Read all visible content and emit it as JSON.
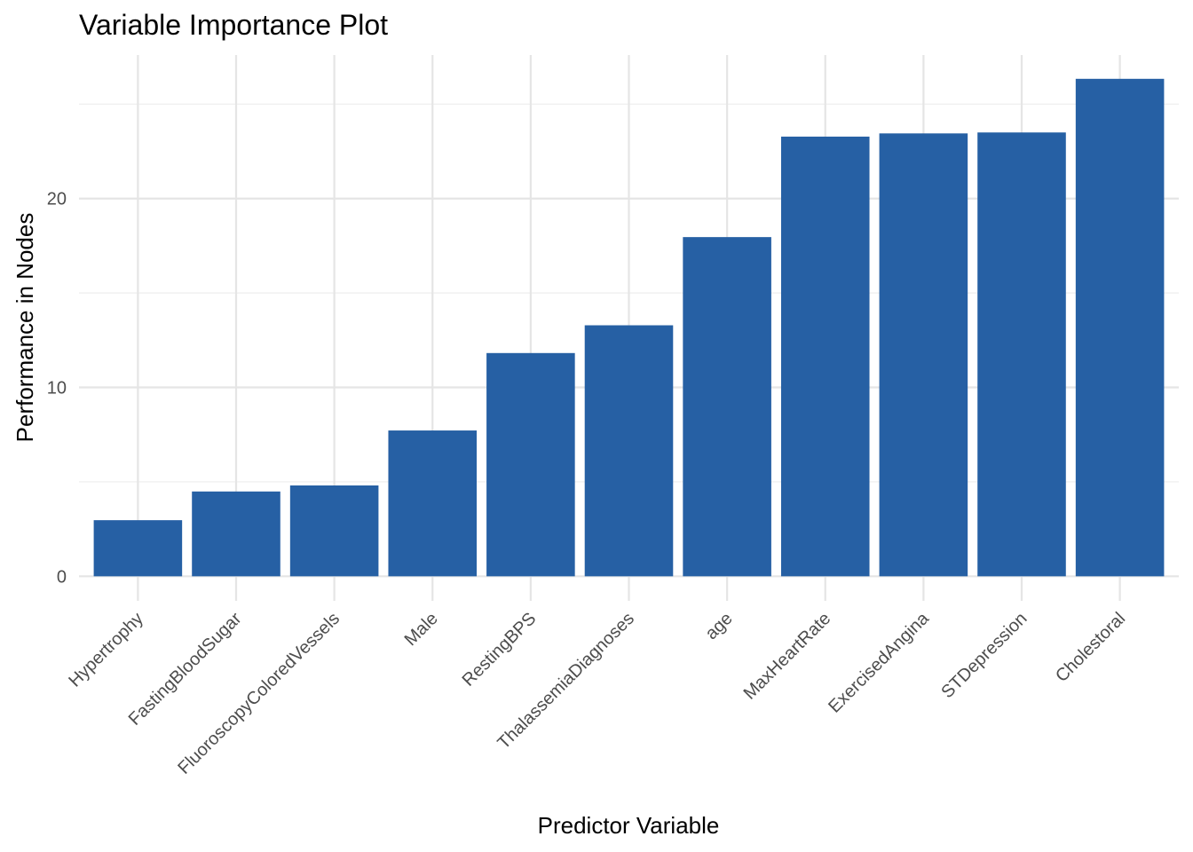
{
  "chart_data": {
    "type": "bar",
    "title": "Variable Importance Plot",
    "xlabel": "Predictor Variable",
    "ylabel": "Performance in Nodes",
    "categories": [
      "Hypertrophy",
      "FastingBloodSugar",
      "FluoroscopyColoredVessels",
      "Male",
      "RestingBPS",
      "ThalassemiaDiagnoses",
      "age",
      "MaxHeartRate",
      "ExercisedAngina",
      "STDepression",
      "Cholestoral"
    ],
    "values": [
      2.97,
      4.49,
      4.81,
      7.72,
      11.82,
      13.29,
      17.96,
      23.28,
      23.45,
      23.5,
      26.34
    ],
    "yticks": [
      0,
      10,
      20
    ],
    "ylim": [
      -1.3,
      27.6
    ],
    "bar_color": "#2660a4",
    "grid": true,
    "legend": "none"
  }
}
